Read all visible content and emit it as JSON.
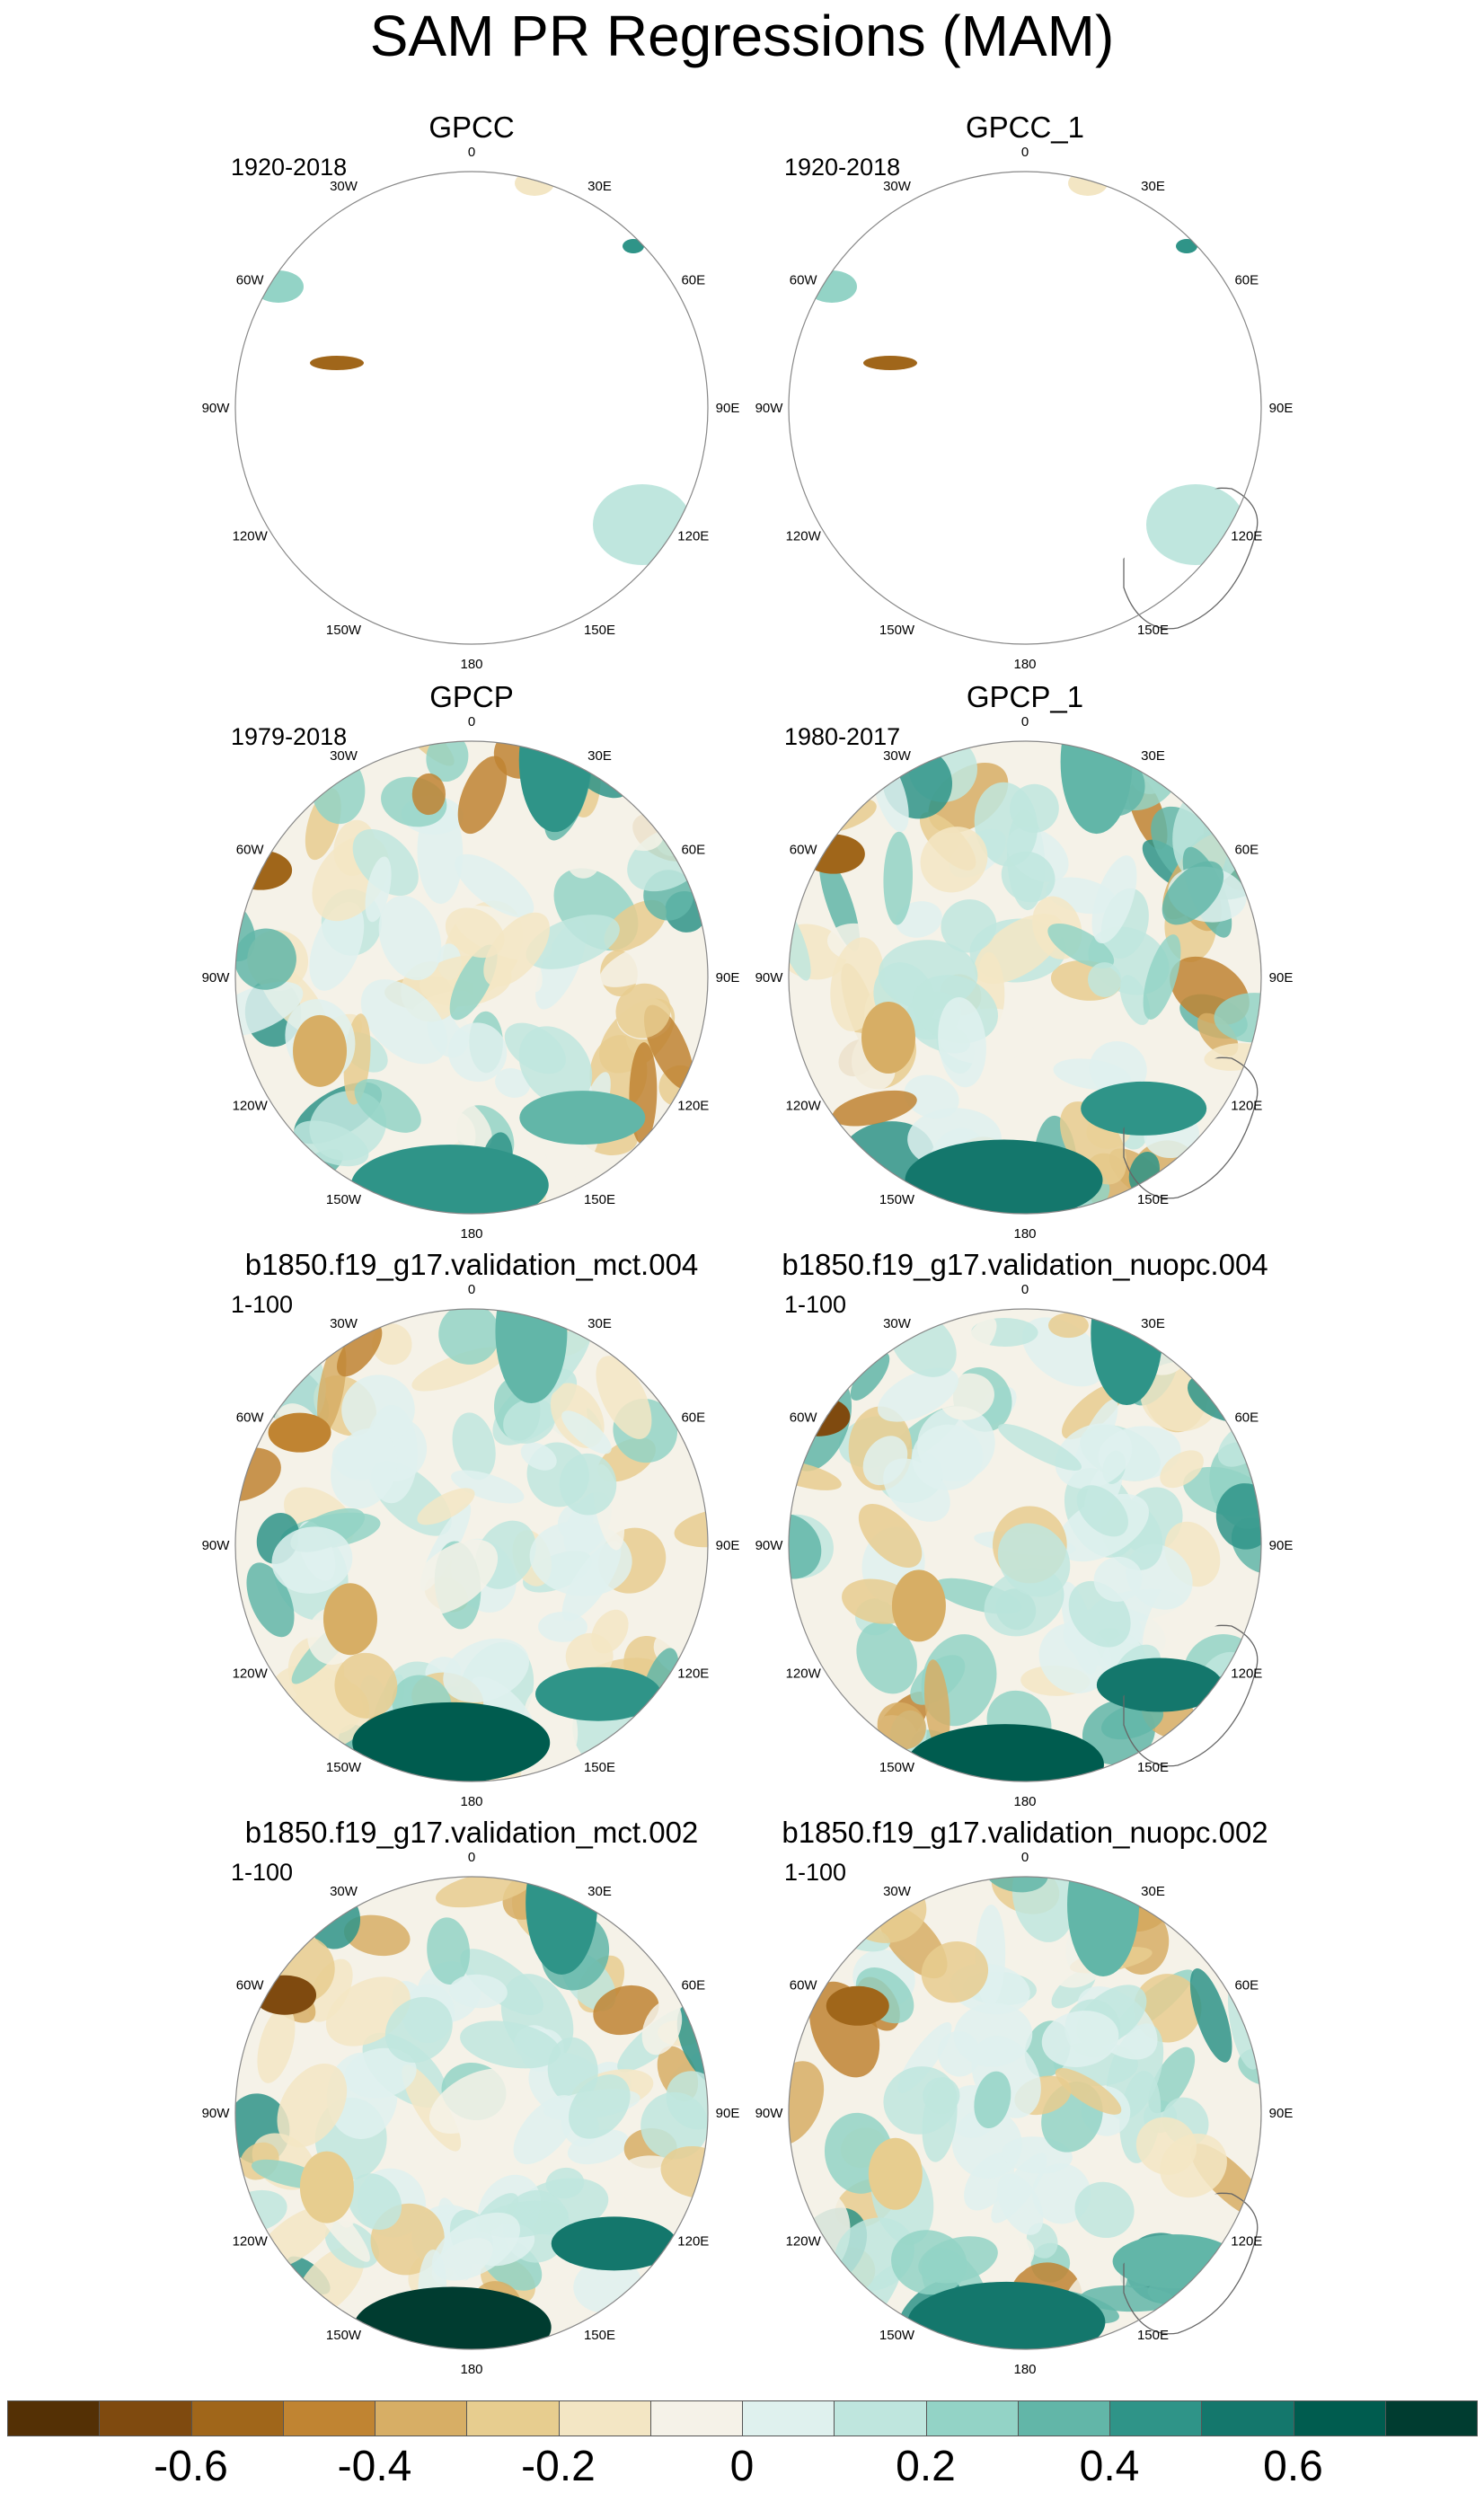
{
  "title": "SAM PR Regressions (MAM)",
  "panels": [
    {
      "title": "GPCC",
      "period": "1920-2018",
      "field": "land-sparse"
    },
    {
      "title": "GPCC_1",
      "period": "1920-2018",
      "field": "land-sparse"
    },
    {
      "title": "GPCP",
      "period": "1979-2018",
      "field": "observed"
    },
    {
      "title": "GPCP_1",
      "period": "1980-2017",
      "field": "observed"
    },
    {
      "title": "b1850.f19_g17.validation_mct.004",
      "period": "1-100",
      "field": "model-a"
    },
    {
      "title": "b1850.f19_g17.validation_nuopc.004",
      "period": "1-100",
      "field": "model-b"
    },
    {
      "title": "b1850.f19_g17.validation_mct.002",
      "period": "1-100",
      "field": "model-c"
    },
    {
      "title": "b1850.f19_g17.validation_nuopc.002",
      "period": "1-100",
      "field": "model-d"
    }
  ],
  "longitude_labels": [
    "0",
    "30E",
    "60E",
    "90E",
    "120E",
    "150E",
    "180",
    "150W",
    "120W",
    "90W",
    "60W",
    "30W"
  ],
  "colorbar": {
    "colors": [
      "#543005",
      "#7f4a0f",
      "#a0661a",
      "#c08432",
      "#d7ae65",
      "#e7cd8f",
      "#f3e6c4",
      "#f5f2e8",
      "#dff1ee",
      "#bfe6de",
      "#93d3c6",
      "#62b6a8",
      "#2f9488",
      "#14776c",
      "#005c4f",
      "#003c30"
    ],
    "labels": [
      "-0.6",
      "-0.4",
      "-0.2",
      "0",
      "0.2",
      "0.4",
      "0.6"
    ]
  },
  "chart_data": {
    "type": "heatmap",
    "title": "SAM PR Regressions (MAM)",
    "projection": "south polar stereographic",
    "variable": "precipitation regressed on SAM index",
    "levels": [
      -0.7,
      -0.6,
      -0.5,
      -0.4,
      -0.3,
      -0.2,
      -0.1,
      0,
      0.1,
      0.2,
      0.3,
      0.4,
      0.5,
      0.6,
      0.7
    ],
    "colorbar_labels": [
      "-0.6",
      "-0.4",
      "-0.2",
      "0",
      "0.2",
      "0.4",
      "0.6"
    ],
    "panels": [
      {
        "name": "GPCC",
        "period": "1920-2018",
        "coverage": "land only"
      },
      {
        "name": "GPCC_1",
        "period": "1920-2018",
        "coverage": "land only"
      },
      {
        "name": "GPCP",
        "period": "1979-2018",
        "coverage": "global"
      },
      {
        "name": "GPCP_1",
        "period": "1980-2017",
        "coverage": "global"
      },
      {
        "name": "b1850.f19_g17.validation_mct.004",
        "period": "1-100",
        "coverage": "global"
      },
      {
        "name": "b1850.f19_g17.validation_nuopc.004",
        "period": "1-100",
        "coverage": "global"
      },
      {
        "name": "b1850.f19_g17.validation_mct.002",
        "period": "1-100",
        "coverage": "global"
      },
      {
        "name": "b1850.f19_g17.validation_nuopc.002",
        "period": "1-100",
        "coverage": "global"
      }
    ]
  }
}
